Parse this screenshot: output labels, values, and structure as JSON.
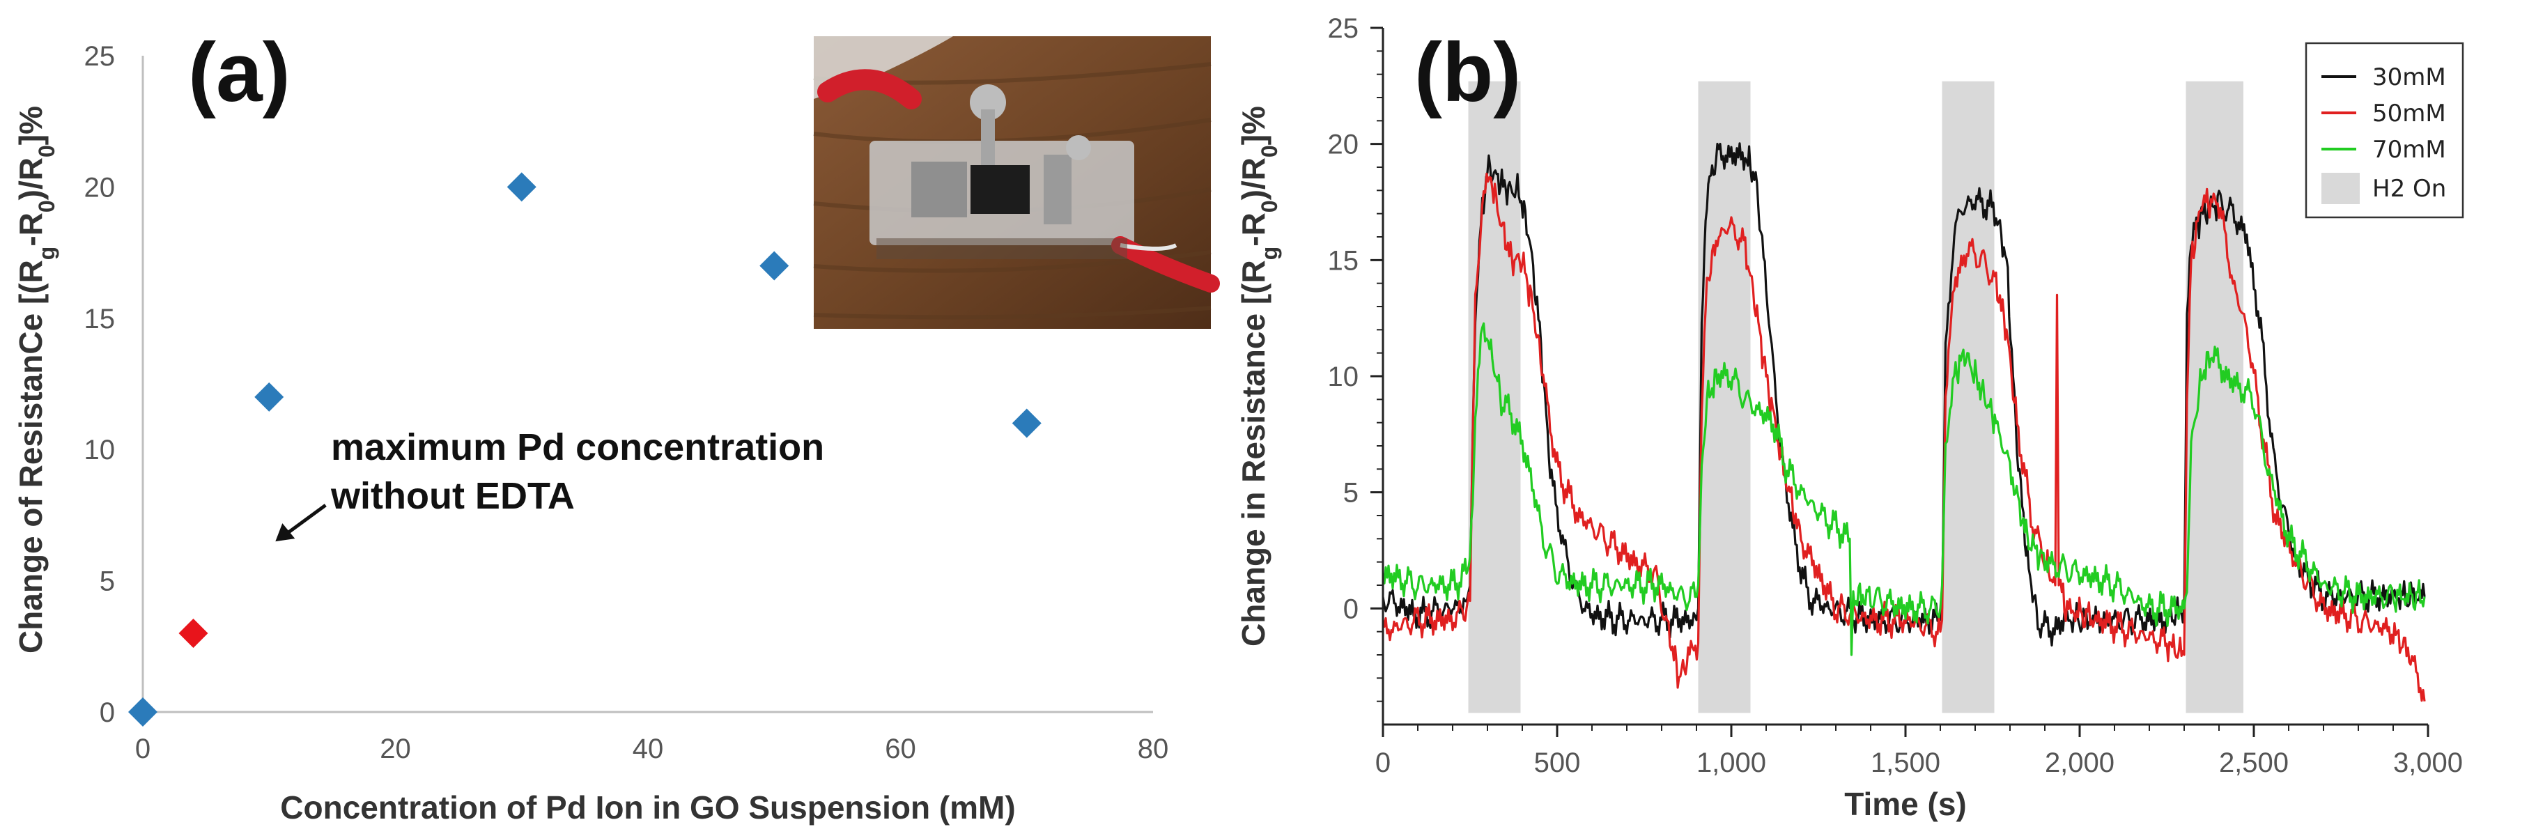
{
  "chart_data": [
    {
      "panel_label": "(a)",
      "type": "scatter",
      "xlabel": "Concentration of Pd Ion in GO Suspension (mM)",
      "ylabel_parts": [
        "Change of ResistanCe [(R",
        "g",
        "-R",
        "0",
        ")/R",
        "0",
        "]%"
      ],
      "xlim": [
        0,
        80
      ],
      "ylim": [
        0,
        25
      ],
      "xticks": [
        0,
        20,
        40,
        60,
        80
      ],
      "yticks": [
        0,
        5,
        10,
        15,
        20,
        25
      ],
      "grid": false,
      "points": [
        {
          "x": 0,
          "y": 0,
          "color": "#2b7bba"
        },
        {
          "x": 4,
          "y": 3,
          "color": "#e8141b"
        },
        {
          "x": 10,
          "y": 12,
          "color": "#2b7bba"
        },
        {
          "x": 30,
          "y": 20,
          "color": "#2b7bba"
        },
        {
          "x": 50,
          "y": 17,
          "color": "#2b7bba"
        },
        {
          "x": 70,
          "y": 11,
          "color": "#2b7bba"
        }
      ],
      "annotation_lines": [
        "maximum Pd concentration",
        "without EDTA"
      ],
      "annotation_points_to": {
        "x": 10.5,
        "y": 6.5
      },
      "inset": "photo-of-sensor-device"
    },
    {
      "panel_label": "(b)",
      "type": "line",
      "xlabel": "Time (s)",
      "ylabel_parts": [
        "Change in Resistance  [(R",
        "g",
        "-R",
        "0",
        ")/R",
        "0",
        "]%"
      ],
      "xlim": [
        0,
        3000
      ],
      "ylim": [
        -5,
        25
      ],
      "xticks": [
        0,
        500,
        1000,
        1500,
        2000,
        2500,
        3000
      ],
      "xtick_labels": [
        "0",
        "500",
        "1,000",
        "1,500",
        "2,000",
        "2,500",
        "3,000"
      ],
      "yticks": [
        0,
        5,
        10,
        15,
        20,
        25
      ],
      "legend": {
        "position": "top-right",
        "entries": [
          "30mM",
          "50mM",
          "70mM",
          "H2 On"
        ]
      },
      "h2_on_intervals": [
        [
          245,
          395
        ],
        [
          905,
          1055
        ],
        [
          1605,
          1755
        ],
        [
          2305,
          2470
        ]
      ],
      "h2_color": "#d9d9d9",
      "series": [
        {
          "name": "30mM",
          "color": "#111111",
          "x": [
            0,
            100,
            200,
            240,
            250,
            265,
            285,
            300,
            330,
            360,
            390,
            420,
            450,
            480,
            520,
            560,
            600,
            680,
            760,
            860,
            900,
            905,
            915,
            930,
            960,
            1000,
            1040,
            1070,
            1100,
            1140,
            1180,
            1220,
            1280,
            1400,
            1500,
            1600,
            1605,
            1615,
            1640,
            1680,
            1720,
            1760,
            1790,
            1820,
            1850,
            1880,
            1920,
            1960,
            2050,
            2150,
            2250,
            2300,
            2308,
            2320,
            2350,
            2400,
            2440,
            2480,
            2520,
            2560,
            2620,
            2700,
            2800,
            2900,
            2990
          ],
          "y": [
            0.5,
            -0.3,
            0,
            0.3,
            1,
            13,
            17,
            19,
            18.5,
            18,
            18,
            16,
            12,
            6,
            2.5,
            0.5,
            -0.3,
            -0.5,
            -0.5,
            -0.5,
            -0.5,
            0,
            12,
            18,
            19.5,
            19.5,
            19.5,
            18.5,
            14,
            7,
            3,
            0.5,
            0,
            -0.5,
            -0.5,
            -0.5,
            0,
            11,
            16.5,
            17.5,
            17.5,
            17,
            15,
            7,
            2,
            -0.5,
            -1,
            -0.5,
            -0.5,
            -0.5,
            -0.5,
            0,
            12,
            16,
            17,
            17.5,
            17,
            16,
            12,
            6,
            2,
            0.5,
            0.5,
            0.5,
            0.5
          ]
        },
        {
          "name": "50mM",
          "color": "#e02020",
          "x": [
            0,
            100,
            200,
            240,
            250,
            265,
            285,
            310,
            340,
            370,
            400,
            430,
            460,
            500,
            560,
            640,
            720,
            780,
            820,
            850,
            880,
            905,
            915,
            930,
            960,
            1000,
            1040,
            1070,
            1100,
            1150,
            1200,
            1300,
            1400,
            1500,
            1600,
            1605,
            1615,
            1640,
            1680,
            1720,
            1760,
            1790,
            1820,
            1860,
            1900,
            1930,
            1935,
            1940,
            1945,
            1960,
            2050,
            2150,
            2250,
            2300,
            2308,
            2320,
            2350,
            2400,
            2440,
            2480,
            2520,
            2560,
            2620,
            2700,
            2800,
            2900,
            2950,
            2990
          ],
          "y": [
            -1,
            -0.5,
            -0.5,
            0,
            1,
            13,
            17.5,
            18.5,
            16.5,
            15,
            15,
            13,
            10,
            6,
            4,
            3,
            2,
            1.5,
            -1,
            -3,
            -2,
            -1.5,
            9,
            14,
            16,
            16.5,
            15.5,
            13,
            10,
            6,
            3,
            0,
            -0.5,
            -0.5,
            -1,
            -0.5,
            9,
            14,
            15.5,
            15,
            14,
            12,
            8,
            4,
            2,
            1,
            13.5,
            1,
            1,
            0,
            -0.5,
            -1,
            -1.5,
            -2,
            9,
            15,
            17.5,
            17.5,
            14,
            12,
            8,
            4,
            2,
            0,
            -0.5,
            -1,
            -2,
            -4
          ]
        },
        {
          "name": "70mM",
          "color": "#22cc22",
          "x": [
            0,
            100,
            200,
            240,
            250,
            265,
            285,
            310,
            340,
            380,
            420,
            460,
            500,
            560,
            640,
            720,
            800,
            860,
            900,
            905,
            915,
            930,
            960,
            1000,
            1040,
            1080,
            1120,
            1160,
            1200,
            1260,
            1300,
            1340,
            1345,
            1350,
            1400,
            1500,
            1600,
            1605,
            1615,
            1640,
            1670,
            1700,
            1730,
            1760,
            1800,
            1850,
            1900,
            2000,
            2100,
            2200,
            2300,
            2308,
            2320,
            2350,
            2380,
            2420,
            2460,
            2500,
            2540,
            2600,
            2700,
            2800,
            2900,
            2990
          ],
          "y": [
            1.5,
            1,
            1,
            1.5,
            2,
            8,
            12.5,
            11,
            9,
            8,
            6,
            3,
            1.5,
            1,
            1,
            1,
            1,
            0.5,
            0.5,
            1,
            6,
            9,
            10,
            10,
            9,
            8.5,
            8,
            6,
            5,
            4,
            3.5,
            3,
            -2,
            0.5,
            0.5,
            0,
            0,
            1,
            7,
            10,
            11,
            10,
            9,
            8,
            6,
            3,
            2,
            1.5,
            1,
            0,
            0,
            1,
            7,
            10,
            11,
            10,
            9.5,
            9,
            6,
            3,
            1,
            0.5,
            0.5,
            0.5
          ]
        }
      ]
    }
  ]
}
